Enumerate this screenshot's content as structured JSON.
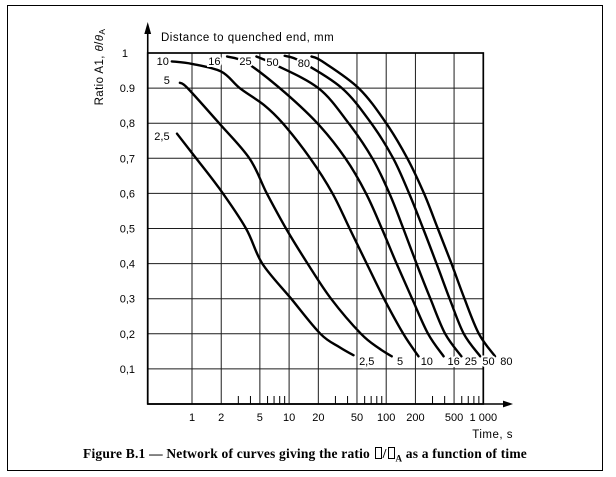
{
  "figure": {
    "caption": {
      "text_before": "Figure B.1 — Network of curves giving the ratio ",
      "separator": "/",
      "subscript": "A",
      "text_after": " as a function of time"
    }
  },
  "chart_data": {
    "type": "line",
    "title": "Distance to quenched end, mm",
    "xlabel": "Time, s",
    "ylabel_plain": "Ratio A1, θ/θA",
    "ylabel_parts": [
      {
        "text": "Ratio A1, "
      },
      {
        "italic": "θ"
      },
      {
        "text": "/"
      },
      {
        "italic": "θ"
      },
      {
        "sub": "A"
      }
    ],
    "x_scale": "log",
    "xlim": [
      0.35,
      1000
    ],
    "ylim": [
      0,
      1
    ],
    "grid": true,
    "legend_position": "none",
    "x_ticks": [
      {
        "value": 1,
        "label": "1"
      },
      {
        "value": 2,
        "label": "2"
      },
      {
        "value": 5,
        "label": "5"
      },
      {
        "value": 10,
        "label": "10"
      },
      {
        "value": 20,
        "label": "20"
      },
      {
        "value": 50,
        "label": "50"
      },
      {
        "value": 100,
        "label": "100"
      },
      {
        "value": 200,
        "label": "200"
      },
      {
        "value": 500,
        "label": "500"
      },
      {
        "value": 1000,
        "label": "1 000"
      }
    ],
    "x_minor_ticks": [
      3,
      4,
      6,
      7,
      8,
      9,
      30,
      40,
      60,
      70,
      80,
      90,
      300,
      400,
      600,
      700,
      800,
      900
    ],
    "y_ticks": [
      {
        "value": 1.0,
        "label": "1",
        "dx": -7
      },
      {
        "value": 0.9,
        "label": "0.9",
        "dx": 0
      },
      {
        "value": 0.8,
        "label": "0,8",
        "dx": 0
      },
      {
        "value": 0.7,
        "label": "0,7",
        "dx": 0
      },
      {
        "value": 0.6,
        "label": "0,6",
        "dx": 0
      },
      {
        "value": 0.5,
        "label": "0,5",
        "dx": 0
      },
      {
        "value": 0.4,
        "label": "0,4",
        "dx": 0
      },
      {
        "value": 0.3,
        "label": "0,3",
        "dx": 0
      },
      {
        "value": 0.2,
        "label": "0,2",
        "dx": 0
      },
      {
        "value": 0.1,
        "label": "0,1",
        "dx": 0
      }
    ],
    "series": [
      {
        "name": "2,5",
        "points": [
          [
            0.7,
            0.77
          ],
          [
            1.0,
            0.715
          ],
          [
            1.9,
            0.615
          ],
          [
            3.6,
            0.5
          ],
          [
            5.3,
            0.4
          ],
          [
            10.5,
            0.3
          ],
          [
            21,
            0.2
          ],
          [
            33,
            0.162
          ],
          [
            46,
            0.139
          ]
        ],
        "top_label": {
          "t": 0.49,
          "r": 0.764
        },
        "bottom_label": {
          "t": 63,
          "r": 0.1225
        }
      },
      {
        "name": "5",
        "points": [
          [
            0.75,
            0.915
          ],
          [
            0.9,
            0.9
          ],
          [
            1.9,
            0.8
          ],
          [
            3.9,
            0.7
          ],
          [
            5.9,
            0.6
          ],
          [
            9.3,
            0.5
          ],
          [
            15.5,
            0.4
          ],
          [
            27,
            0.3
          ],
          [
            55,
            0.2
          ],
          [
            85,
            0.158
          ],
          [
            114,
            0.136
          ]
        ],
        "top_label": {
          "t": 0.55,
          "r": 0.923
        },
        "bottom_label": {
          "t": 139,
          "r": 0.1225
        }
      },
      {
        "name": "10",
        "points": [
          [
            0.62,
            0.976
          ],
          [
            1.0,
            0.969
          ],
          [
            2.0,
            0.947
          ],
          [
            3.1,
            0.9
          ],
          [
            5.5,
            0.852
          ],
          [
            8.6,
            0.8
          ],
          [
            16.5,
            0.7
          ],
          [
            28,
            0.6
          ],
          [
            42,
            0.5
          ],
          [
            63,
            0.4
          ],
          [
            95,
            0.3
          ],
          [
            150,
            0.2
          ],
          [
            215,
            0.136
          ]
        ],
        "top_label": {
          "t": 0.5,
          "r": 0.977
        },
        "bottom_label": {
          "t": 262,
          "r": 0.1225
        }
      },
      {
        "name": "16",
        "points": [
          [
            2.3,
            0.99
          ],
          [
            3.6,
            0.973
          ],
          [
            8.0,
            0.9
          ],
          [
            19.5,
            0.8
          ],
          [
            38,
            0.7
          ],
          [
            62,
            0.6
          ],
          [
            90,
            0.5
          ],
          [
            128,
            0.4
          ],
          [
            185,
            0.3
          ],
          [
            270,
            0.2
          ],
          [
            390,
            0.136
          ]
        ],
        "top_label": {
          "t": 1.7,
          "r": 0.977
        },
        "bottom_label": {
          "t": 495,
          "r": 0.1225
        }
      },
      {
        "name": "25",
        "points": [
          [
            4.6,
            0.99
          ],
          [
            7.0,
            0.968
          ],
          [
            20,
            0.9
          ],
          [
            41,
            0.8
          ],
          [
            72,
            0.7
          ],
          [
            108,
            0.6
          ],
          [
            150,
            0.5
          ],
          [
            205,
            0.4
          ],
          [
            285,
            0.3
          ],
          [
            405,
            0.2
          ],
          [
            595,
            0.136
          ]
        ],
        "top_label": {
          "t": 3.56,
          "r": 0.977
        },
        "bottom_label": {
          "t": 745,
          "r": 0.1225
        }
      },
      {
        "name": "50",
        "points": [
          [
            9,
            0.992
          ],
          [
            13,
            0.977
          ],
          [
            35,
            0.9
          ],
          [
            70,
            0.8
          ],
          [
            118,
            0.7
          ],
          [
            172,
            0.6
          ],
          [
            240,
            0.5
          ],
          [
            330,
            0.4
          ],
          [
            450,
            0.3
          ],
          [
            630,
            0.2
          ],
          [
            930,
            0.136
          ]
        ],
        "top_label": {
          "t": 6.75,
          "r": 0.975
        },
        "bottom_label": {
          "t": 1130,
          "r": 0.1225
        }
      },
      {
        "name": "80",
        "points": [
          [
            17,
            0.99
          ],
          [
            22,
            0.976
          ],
          [
            52,
            0.9
          ],
          [
            100,
            0.8
          ],
          [
            165,
            0.7
          ],
          [
            245,
            0.6
          ],
          [
            340,
            0.5
          ],
          [
            470,
            0.4
          ],
          [
            640,
            0.3
          ],
          [
            900,
            0.2
          ],
          [
            1320,
            0.136
          ]
        ],
        "top_label": {
          "t": 14.2,
          "r": 0.972
        },
        "bottom_label": {
          "t": 1730,
          "r": 0.1225
        }
      }
    ],
    "colors": {
      "ink": "#000000",
      "grid": "#1c1c1c",
      "background": "#ffffff"
    }
  }
}
